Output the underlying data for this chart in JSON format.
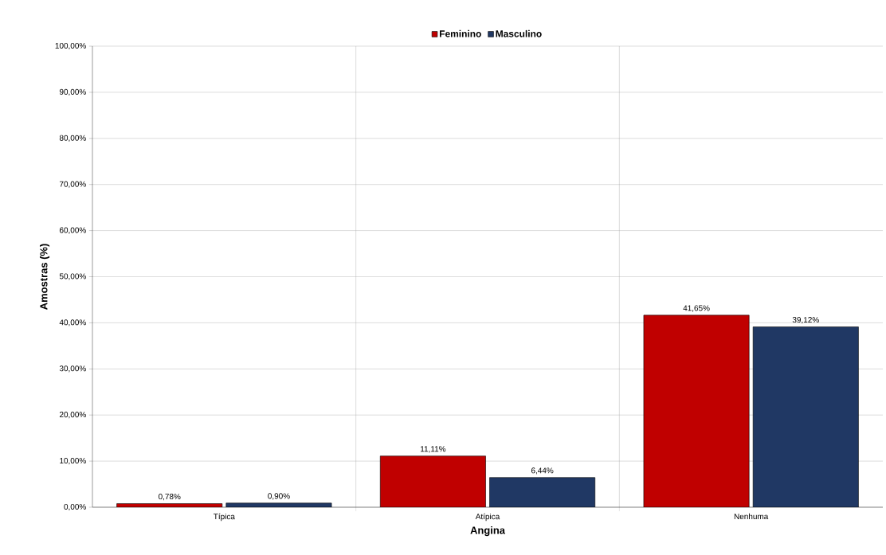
{
  "chart_data": {
    "type": "bar",
    "xlabel": "Angina",
    "ylabel": "Amostras (%)",
    "categories": [
      "Típica",
      "Atípica",
      "Nenhuma"
    ],
    "series": [
      {
        "name": "Feminino",
        "color": "#c00000",
        "values": [
          0.78,
          11.11,
          41.65
        ],
        "value_labels": [
          "0,78%",
          "11,11%",
          "41,65%"
        ]
      },
      {
        "name": "Masculino",
        "color": "#203864",
        "values": [
          0.9,
          6.44,
          39.12
        ],
        "value_labels": [
          "0,90%",
          "6,44%",
          "39,12%"
        ]
      }
    ],
    "ylim": [
      0,
      100
    ],
    "yticks": [
      {
        "value": 0,
        "label": "0,00%"
      },
      {
        "value": 10,
        "label": "10,00%"
      },
      {
        "value": 20,
        "label": "20,00%"
      },
      {
        "value": 30,
        "label": "30,00%"
      },
      {
        "value": 40,
        "label": "40,00%"
      },
      {
        "value": 50,
        "label": "50,00%"
      },
      {
        "value": 60,
        "label": "60,00%"
      },
      {
        "value": 70,
        "label": "70,00%"
      },
      {
        "value": 80,
        "label": "80,00%"
      },
      {
        "value": 90,
        "label": "90,00%"
      },
      {
        "value": 100,
        "label": "100,00%"
      }
    ],
    "grid": true,
    "legend": "top"
  }
}
